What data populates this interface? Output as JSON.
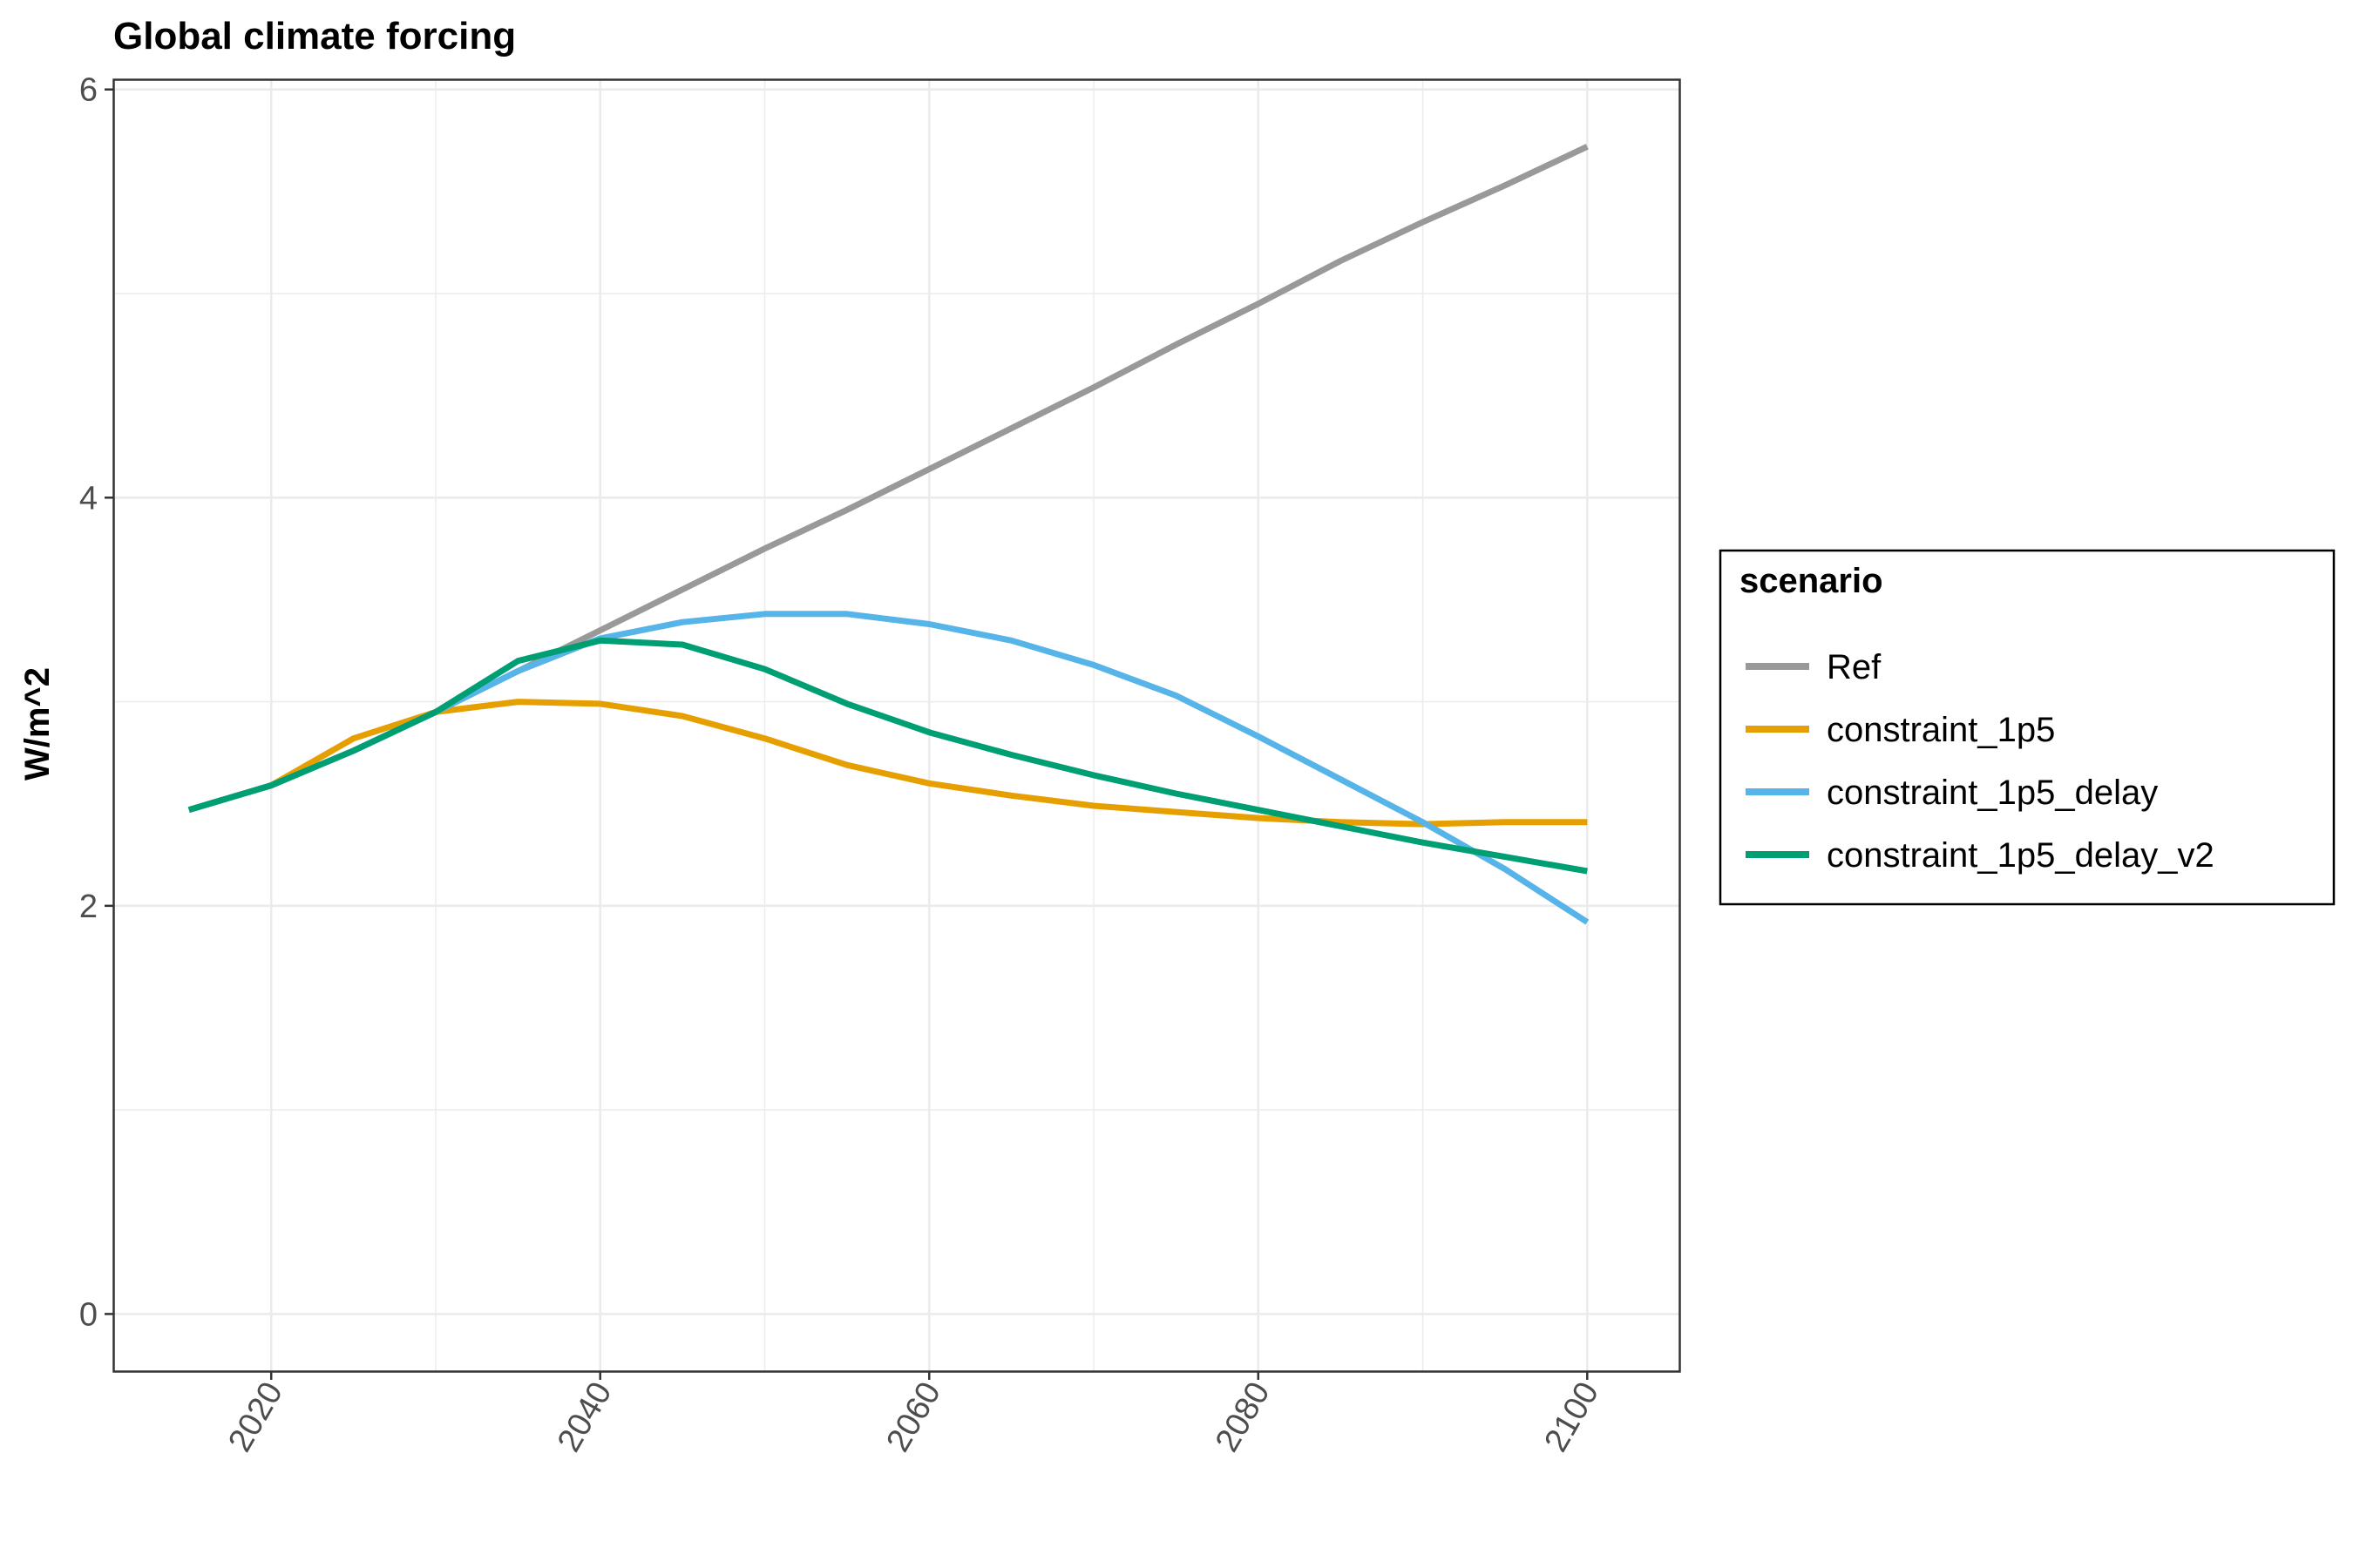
{
  "chart_data": {
    "type": "line",
    "title": "Global climate forcing",
    "xlabel": "",
    "ylabel": "W/m^2",
    "xlim": [
      2010.4,
      2105.6
    ],
    "ylim": [
      -0.28,
      6.05
    ],
    "x_ticks": [
      2020,
      2040,
      2060,
      2080,
      2100
    ],
    "y_ticks": [
      0,
      2,
      4,
      6
    ],
    "grid": true,
    "legend_title": "scenario",
    "legend_position": "right",
    "series": [
      {
        "name": "Ref",
        "color": "#999999",
        "x": [
          2015,
          2020,
          2025,
          2030,
          2035,
          2040,
          2045,
          2050,
          2055,
          2060,
          2065,
          2070,
          2075,
          2080,
          2085,
          2090,
          2095,
          2100
        ],
        "y": [
          2.47,
          2.59,
          2.76,
          2.95,
          3.15,
          3.35,
          3.55,
          3.75,
          3.94,
          4.14,
          4.34,
          4.54,
          4.75,
          4.95,
          5.16,
          5.35,
          5.53,
          5.72
        ]
      },
      {
        "name": "constraint_1p5",
        "color": "#E69F00",
        "x": [
          2015,
          2020,
          2025,
          2030,
          2035,
          2040,
          2045,
          2050,
          2055,
          2060,
          2065,
          2070,
          2075,
          2080,
          2085,
          2090,
          2095,
          2100
        ],
        "y": [
          2.47,
          2.59,
          2.82,
          2.95,
          3.0,
          2.99,
          2.93,
          2.82,
          2.69,
          2.6,
          2.54,
          2.49,
          2.46,
          2.43,
          2.41,
          2.4,
          2.41,
          2.41
        ]
      },
      {
        "name": "constraint_1p5_delay",
        "color": "#56B4E9",
        "x": [
          2015,
          2020,
          2025,
          2030,
          2035,
          2040,
          2045,
          2050,
          2055,
          2060,
          2065,
          2070,
          2075,
          2080,
          2085,
          2090,
          2095,
          2100
        ],
        "y": [
          2.47,
          2.59,
          2.76,
          2.95,
          3.15,
          3.31,
          3.39,
          3.43,
          3.43,
          3.38,
          3.3,
          3.18,
          3.03,
          2.83,
          2.62,
          2.41,
          2.18,
          1.92
        ]
      },
      {
        "name": "constraint_1p5_delay_v2",
        "color": "#009E73",
        "x": [
          2015,
          2020,
          2025,
          2030,
          2035,
          2040,
          2045,
          2050,
          2055,
          2060,
          2065,
          2070,
          2075,
          2080,
          2085,
          2090,
          2095,
          2100
        ],
        "y": [
          2.47,
          2.59,
          2.76,
          2.95,
          3.2,
          3.3,
          3.28,
          3.16,
          2.99,
          2.85,
          2.74,
          2.64,
          2.55,
          2.47,
          2.39,
          2.31,
          2.24,
          2.17
        ]
      }
    ]
  }
}
